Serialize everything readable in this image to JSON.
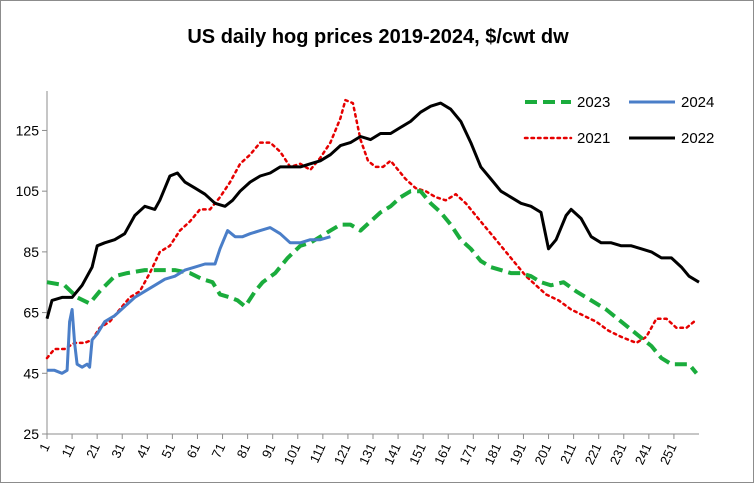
{
  "chart_data": {
    "type": "line",
    "title": "US daily hog prices 2019-2024, $/cwt dw",
    "xlabel": "",
    "ylabel": "",
    "xlim": [
      1,
      261
    ],
    "ylim": [
      25,
      138
    ],
    "yticks": [
      25,
      45,
      65,
      85,
      105,
      125
    ],
    "xticks": [
      1,
      11,
      21,
      31,
      41,
      51,
      61,
      71,
      81,
      91,
      101,
      111,
      121,
      131,
      141,
      151,
      161,
      171,
      181,
      191,
      201,
      211,
      221,
      231,
      241,
      251
    ],
    "grid": false,
    "legend": "top-right",
    "series": [
      {
        "name": "2023",
        "color": "#1aac3c",
        "style": "dashed",
        "points": [
          [
            1,
            75
          ],
          [
            8,
            74
          ],
          [
            13,
            70
          ],
          [
            18,
            68
          ],
          [
            22,
            72
          ],
          [
            28,
            77
          ],
          [
            33,
            78
          ],
          [
            40,
            79
          ],
          [
            46,
            79
          ],
          [
            52,
            79
          ],
          [
            58,
            78
          ],
          [
            63,
            76
          ],
          [
            67,
            75
          ],
          [
            70,
            71
          ],
          [
            74,
            70
          ],
          [
            77,
            69
          ],
          [
            80,
            67
          ],
          [
            84,
            72
          ],
          [
            87,
            75
          ],
          [
            92,
            78
          ],
          [
            97,
            83
          ],
          [
            102,
            87
          ],
          [
            106,
            88
          ],
          [
            110,
            90
          ],
          [
            114,
            92
          ],
          [
            118,
            94
          ],
          [
            122,
            94
          ],
          [
            126,
            92
          ],
          [
            130,
            95
          ],
          [
            134,
            98
          ],
          [
            138,
            100
          ],
          [
            142,
            103
          ],
          [
            146,
            105
          ],
          [
            150,
            105
          ],
          [
            154,
            101
          ],
          [
            158,
            98
          ],
          [
            162,
            94
          ],
          [
            166,
            89
          ],
          [
            170,
            86
          ],
          [
            174,
            82
          ],
          [
            178,
            80
          ],
          [
            182,
            79
          ],
          [
            186,
            78
          ],
          [
            190,
            78
          ],
          [
            194,
            77
          ],
          [
            198,
            75
          ],
          [
            202,
            74
          ],
          [
            207,
            75
          ],
          [
            212,
            72
          ],
          [
            218,
            69
          ],
          [
            224,
            66
          ],
          [
            230,
            62
          ],
          [
            236,
            58
          ],
          [
            242,
            54
          ],
          [
            246,
            50
          ],
          [
            250,
            48
          ],
          [
            254,
            48
          ],
          [
            257,
            48
          ],
          [
            260,
            45
          ]
        ]
      },
      {
        "name": "2024",
        "color": "#4a7ec8",
        "style": "solid",
        "points": [
          [
            1,
            46
          ],
          [
            4,
            46
          ],
          [
            7,
            45
          ],
          [
            9,
            46
          ],
          [
            10,
            62
          ],
          [
            11,
            66
          ],
          [
            12,
            55
          ],
          [
            13,
            48
          ],
          [
            15,
            47
          ],
          [
            17,
            48
          ],
          [
            18,
            47
          ],
          [
            19,
            56
          ],
          [
            21,
            58
          ],
          [
            24,
            62
          ],
          [
            28,
            64
          ],
          [
            32,
            67
          ],
          [
            36,
            70
          ],
          [
            40,
            72
          ],
          [
            44,
            74
          ],
          [
            48,
            76
          ],
          [
            52,
            77
          ],
          [
            56,
            79
          ],
          [
            60,
            80
          ],
          [
            64,
            81
          ],
          [
            68,
            81
          ],
          [
            70,
            86
          ],
          [
            73,
            92
          ],
          [
            76,
            90
          ],
          [
            79,
            90
          ],
          [
            82,
            91
          ],
          [
            86,
            92
          ],
          [
            90,
            93
          ],
          [
            94,
            91
          ],
          [
            98,
            88
          ],
          [
            102,
            88
          ],
          [
            106,
            89
          ],
          [
            110,
            89
          ],
          [
            114,
            90
          ]
        ]
      },
      {
        "name": "2021",
        "color": "#e60000",
        "style": "dotted",
        "points": [
          [
            1,
            50
          ],
          [
            4,
            53
          ],
          [
            8,
            53
          ],
          [
            12,
            55
          ],
          [
            16,
            55
          ],
          [
            19,
            56
          ],
          [
            22,
            60
          ],
          [
            26,
            62
          ],
          [
            30,
            66
          ],
          [
            34,
            70
          ],
          [
            38,
            72
          ],
          [
            42,
            78
          ],
          [
            46,
            85
          ],
          [
            50,
            87
          ],
          [
            54,
            92
          ],
          [
            58,
            95
          ],
          [
            62,
            99
          ],
          [
            66,
            99
          ],
          [
            70,
            103
          ],
          [
            74,
            108
          ],
          [
            78,
            114
          ],
          [
            82,
            117
          ],
          [
            86,
            121
          ],
          [
            90,
            121
          ],
          [
            94,
            118
          ],
          [
            98,
            113
          ],
          [
            102,
            114
          ],
          [
            106,
            112
          ],
          [
            110,
            116
          ],
          [
            114,
            121
          ],
          [
            118,
            129
          ],
          [
            120,
            135
          ],
          [
            123,
            134
          ],
          [
            126,
            122
          ],
          [
            129,
            115
          ],
          [
            132,
            113
          ],
          [
            135,
            113
          ],
          [
            138,
            115
          ],
          [
            141,
            112
          ],
          [
            144,
            109
          ],
          [
            148,
            106
          ],
          [
            152,
            105
          ],
          [
            156,
            103
          ],
          [
            160,
            102
          ],
          [
            164,
            104
          ],
          [
            168,
            101
          ],
          [
            172,
            97
          ],
          [
            176,
            93
          ],
          [
            180,
            89
          ],
          [
            184,
            85
          ],
          [
            188,
            81
          ],
          [
            192,
            77
          ],
          [
            196,
            74
          ],
          [
            200,
            71
          ],
          [
            205,
            69
          ],
          [
            210,
            66
          ],
          [
            215,
            64
          ],
          [
            220,
            62
          ],
          [
            225,
            59
          ],
          [
            230,
            57
          ],
          [
            236,
            55
          ],
          [
            240,
            57
          ],
          [
            244,
            63
          ],
          [
            248,
            63
          ],
          [
            252,
            60
          ],
          [
            256,
            60
          ],
          [
            259,
            62
          ]
        ]
      },
      {
        "name": "2022",
        "color": "#000000",
        "style": "solid",
        "points": [
          [
            1,
            63
          ],
          [
            3,
            69
          ],
          [
            7,
            70
          ],
          [
            11,
            70
          ],
          [
            15,
            74
          ],
          [
            19,
            80
          ],
          [
            21,
            87
          ],
          [
            24,
            88
          ],
          [
            28,
            89
          ],
          [
            32,
            91
          ],
          [
            36,
            97
          ],
          [
            40,
            100
          ],
          [
            44,
            99
          ],
          [
            46,
            102
          ],
          [
            48,
            106
          ],
          [
            50,
            110
          ],
          [
            53,
            111
          ],
          [
            56,
            108
          ],
          [
            60,
            106
          ],
          [
            64,
            104
          ],
          [
            68,
            101
          ],
          [
            72,
            100
          ],
          [
            75,
            102
          ],
          [
            78,
            105
          ],
          [
            82,
            108
          ],
          [
            86,
            110
          ],
          [
            90,
            111
          ],
          [
            94,
            113
          ],
          [
            98,
            113
          ],
          [
            102,
            113
          ],
          [
            106,
            114
          ],
          [
            110,
            115
          ],
          [
            114,
            117
          ],
          [
            118,
            120
          ],
          [
            122,
            121
          ],
          [
            126,
            123
          ],
          [
            130,
            122
          ],
          [
            134,
            124
          ],
          [
            138,
            124
          ],
          [
            142,
            126
          ],
          [
            146,
            128
          ],
          [
            150,
            131
          ],
          [
            154,
            133
          ],
          [
            158,
            134
          ],
          [
            162,
            132
          ],
          [
            166,
            128
          ],
          [
            170,
            121
          ],
          [
            174,
            113
          ],
          [
            178,
            109
          ],
          [
            182,
            105
          ],
          [
            186,
            103
          ],
          [
            190,
            101
          ],
          [
            194,
            100
          ],
          [
            198,
            98
          ],
          [
            201,
            86
          ],
          [
            204,
            89
          ],
          [
            206,
            93
          ],
          [
            208,
            97
          ],
          [
            210,
            99
          ],
          [
            214,
            96
          ],
          [
            218,
            90
          ],
          [
            222,
            88
          ],
          [
            226,
            88
          ],
          [
            230,
            87
          ],
          [
            234,
            87
          ],
          [
            238,
            86
          ],
          [
            242,
            85
          ],
          [
            246,
            83
          ],
          [
            250,
            83
          ],
          [
            254,
            80
          ],
          [
            257,
            77
          ],
          [
            261,
            75
          ]
        ]
      }
    ]
  }
}
